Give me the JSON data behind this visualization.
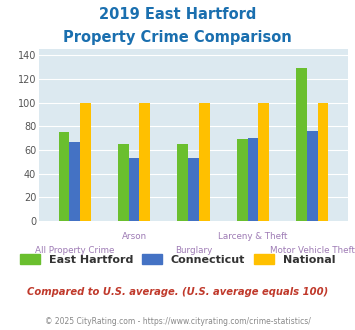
{
  "title_line1": "2019 East Hartford",
  "title_line2": "Property Crime Comparison",
  "categories": [
    "All Property Crime",
    "Arson",
    "Burglary",
    "Larceny & Theft",
    "Motor Vehicle Theft"
  ],
  "east_hartford": [
    75,
    65,
    65,
    69,
    129
  ],
  "connecticut": [
    67,
    53,
    53,
    70,
    76
  ],
  "national": [
    100,
    100,
    100,
    100,
    100
  ],
  "color_eh": "#6abf2e",
  "color_ct": "#4472c4",
  "color_nat": "#ffc000",
  "ylim": [
    0,
    145
  ],
  "yticks": [
    0,
    20,
    40,
    60,
    80,
    100,
    120,
    140
  ],
  "legend_labels": [
    "East Hartford",
    "Connecticut",
    "National"
  ],
  "note": "Compared to U.S. average. (U.S. average equals 100)",
  "footer": "© 2025 CityRating.com - https://www.cityrating.com/crime-statistics/",
  "title_color": "#1a6faf",
  "cat_label_color": "#9e7bb5",
  "bg_color": "#dce9f0",
  "plot_bg": "#dce9f0",
  "note_color": "#c0392b",
  "footer_color": "#888888",
  "bar_width": 0.18,
  "group_positions": [
    1,
    2,
    3,
    4,
    5
  ],
  "row1_cats": [
    1,
    3
  ],
  "row2_cats": [
    0,
    2,
    4
  ]
}
